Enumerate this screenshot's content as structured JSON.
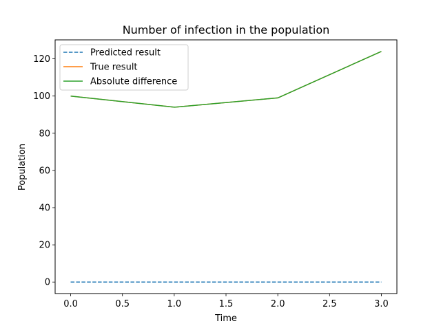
{
  "chart_data": {
    "type": "line",
    "title": "Number of infection in the population",
    "xlabel": "Time",
    "ylabel": "Population",
    "xlim": [
      -0.15,
      3.15
    ],
    "ylim": [
      -6.2,
      130.2
    ],
    "xticks": [
      0.0,
      0.5,
      1.0,
      1.5,
      2.0,
      2.5,
      3.0
    ],
    "xtick_labels": [
      "0.0",
      "0.5",
      "1.0",
      "1.5",
      "2.0",
      "2.5",
      "3.0"
    ],
    "yticks": [
      0,
      20,
      40,
      60,
      80,
      100,
      120
    ],
    "ytick_labels": [
      "0",
      "20",
      "40",
      "60",
      "80",
      "100",
      "120"
    ],
    "grid": false,
    "legend_position": "top-left",
    "x": [
      0,
      1,
      2,
      3
    ],
    "series": [
      {
        "name": "Predicted result",
        "values": [
          0,
          0,
          0,
          0
        ],
        "color": "#1f77b4",
        "style": "dashed"
      },
      {
        "name": "True result",
        "values": [
          100,
          94,
          99,
          124
        ],
        "color": "#ff7f0e",
        "style": "solid"
      },
      {
        "name": "Absolute difference",
        "values": [
          100,
          94,
          99,
          124
        ],
        "color": "#2ca02c",
        "style": "solid"
      }
    ]
  }
}
